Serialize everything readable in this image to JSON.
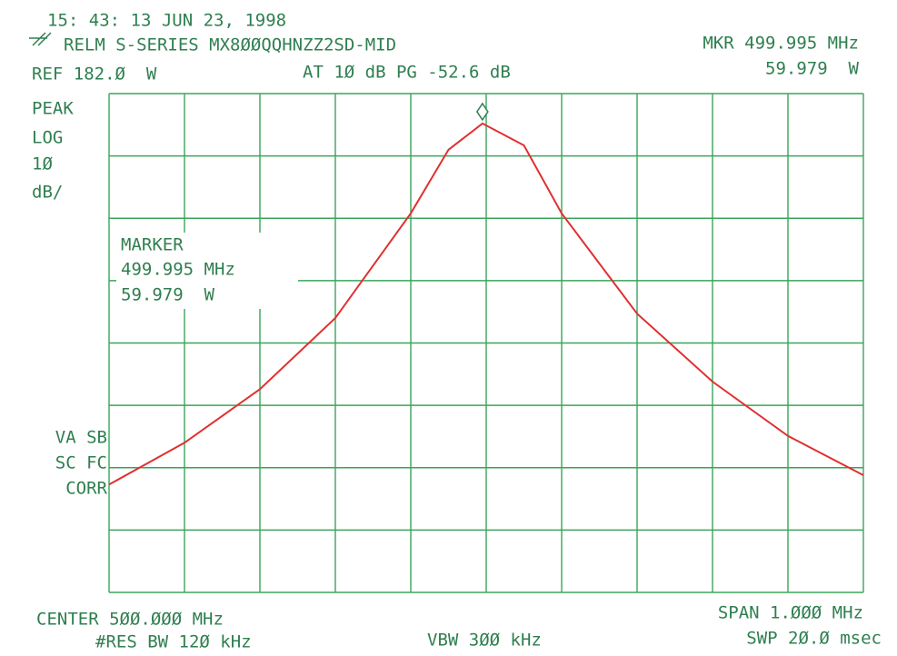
{
  "header": {
    "timestamp": "15: 43: 13 JUN 23, 1998",
    "device": "RELM S-SERIES MX8ØØQQHNZZ2SD-MID",
    "ref": "REF 182.Ø  W",
    "atten": "AT 1Ø dB PG -52.6 dB",
    "marker_freq": "MKR 499.995 MHz",
    "marker_level": "59.979  W"
  },
  "side_labels": [
    "PEAK",
    "LOG",
    "1Ø",
    "dB/"
  ],
  "marker_box": [
    "MARKER",
    "499.995 MHz",
    "59.979  W"
  ],
  "status_labels": [
    "VA SB",
    "SC FC",
    "CORR"
  ],
  "footer": {
    "center": "CENTER 5ØØ.ØØØ MHz",
    "res_bw": "#RES BW 12Ø kHz",
    "vbw": "VBW 3ØØ kHz",
    "span": "SPAN 1.ØØØ MHz",
    "sweep": "SWP 2Ø.Ø msec"
  },
  "chart_data": {
    "type": "line",
    "x": [
      499.5,
      499.6,
      499.7,
      499.8,
      499.9,
      499.95,
      499.995,
      500.05,
      500.1,
      500.2,
      500.3,
      500.4,
      500.5
    ],
    "series": [
      {
        "color": "#e03030",
        "values": [
          -62.7,
          -56.0,
          -47.4,
          -36.0,
          -19.2,
          -9.0,
          -4.8,
          -8.3,
          -19.2,
          -35.3,
          -46.2,
          -54.9,
          -61.2
        ]
      }
    ],
    "xlim": [
      499.5,
      500.5
    ],
    "ylim": [
      -80,
      0
    ],
    "xticks": [
      499.5,
      499.6,
      499.7,
      499.8,
      499.9,
      500.0,
      500.1,
      500.2,
      500.3,
      500.4,
      500.5
    ],
    "yticks": [
      -80,
      -70,
      -60,
      -50,
      -40,
      -30,
      -20,
      -10,
      0
    ],
    "grid": true
  }
}
